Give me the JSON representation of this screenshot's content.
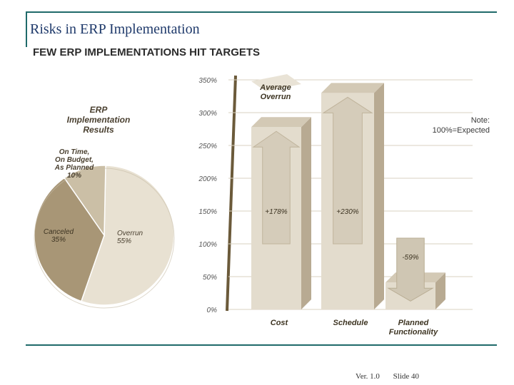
{
  "slide": {
    "title": "Risks in ERP Implementation",
    "footer_version": "Ver. 1.0",
    "footer_slide": "Slide 40"
  },
  "colors": {
    "accent_rule": "#1f6a6a",
    "bar_front": "#e3dccd",
    "bar_shade": "#b8aa92",
    "pie_overrun": "#e8e1d2",
    "pie_cancelled": "#a89676",
    "pie_ontime": "#cbbfa6",
    "axis": "#6b5a3a",
    "text_dark": "#3a3a3a"
  },
  "chart_data": [
    {
      "type": "pie",
      "title": "FEW ERP IMPLEMENTATIONS HIT TARGETS",
      "subtitle_lines": [
        "ERP",
        "Implementation",
        "Results"
      ],
      "slices": [
        {
          "label_lines": [
            "Overrun",
            "55%"
          ],
          "value": 55,
          "color": "#e8e1d2"
        },
        {
          "label_lines": [
            "Canceled",
            "35%"
          ],
          "value": 35,
          "color": "#a89676"
        },
        {
          "label_lines": [
            "On Time,",
            "On Budget,",
            "As Planned",
            "10%"
          ],
          "value": 10,
          "color": "#cbbfa6"
        }
      ]
    },
    {
      "type": "bar",
      "ylim": [
        0,
        350
      ],
      "yticks": [
        0,
        50,
        100,
        150,
        200,
        250,
        300,
        350
      ],
      "ytick_labels": [
        "0%",
        "50%",
        "100%",
        "150%",
        "200%",
        "250%",
        "300%",
        "350%"
      ],
      "grid": true,
      "categories": [
        [
          "Cost"
        ],
        [
          "Schedule"
        ],
        [
          "Planned",
          "Functionality"
        ]
      ],
      "values": [
        278,
        330,
        41
      ],
      "baseline": 100,
      "arrow_labels": [
        "+178%",
        "+230%",
        "-59%"
      ],
      "annotation_lines": [
        "Average",
        "Overrun"
      ],
      "note_lines": [
        "Note:",
        "100%=Expected"
      ]
    }
  ]
}
